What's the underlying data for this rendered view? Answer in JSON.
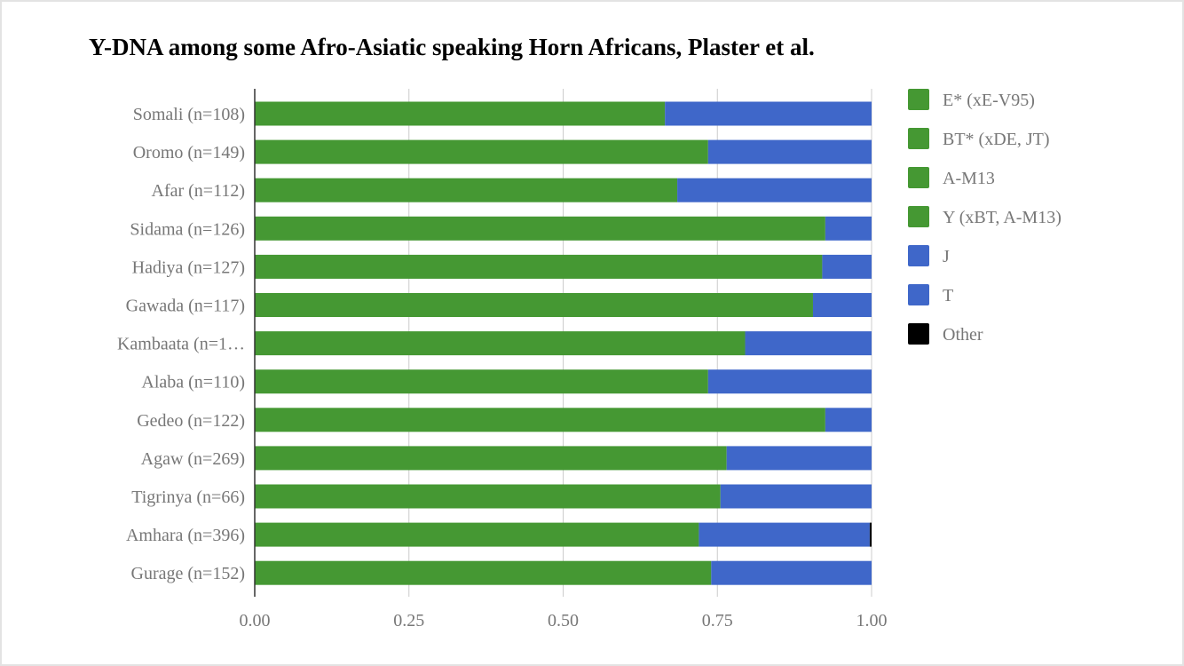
{
  "chart_data": {
    "type": "bar",
    "orientation": "horizontal",
    "stacked": true,
    "title": "Y-DNA among some Afro-Asiatic speaking Horn Africans, Plaster et al.",
    "xlabel": "",
    "ylabel": "",
    "xlim": [
      0,
      1
    ],
    "x_ticks": [
      "0.00",
      "0.25",
      "0.50",
      "0.75",
      "1.00"
    ],
    "grid": true,
    "legend_position": "right",
    "categories": [
      "Somali (n=108)",
      "Oromo (n=149)",
      "Afar (n=112)",
      "Sidama (n=126)",
      "Hadiya (n=127)",
      "Gawada (n=117)",
      "Kambaata (n=1…",
      "Alaba (n=110)",
      "Gedeo (n=122)",
      "Agaw (n=269)",
      "Tigrinya (n=66)",
      "Amhara (n=396)",
      "Gurage (n=152)"
    ],
    "series": [
      {
        "name": "E* (xE-V95)",
        "color": "#459833",
        "values": [
          0.665,
          0.735,
          0.685,
          0.925,
          0.92,
          0.905,
          0.795,
          0.735,
          0.925,
          0.765,
          0.755,
          0.72,
          0.74
        ]
      },
      {
        "name": "BT* (xDE, JT)",
        "color": "#459833",
        "values": [
          0,
          0,
          0,
          0,
          0,
          0,
          0,
          0,
          0,
          0,
          0,
          0,
          0
        ]
      },
      {
        "name": "A-M13",
        "color": "#459833",
        "values": [
          0,
          0,
          0,
          0,
          0,
          0,
          0,
          0,
          0,
          0,
          0,
          0,
          0
        ]
      },
      {
        "name": "Y (xBT, A-M13)",
        "color": "#459833",
        "values": [
          0,
          0,
          0,
          0,
          0,
          0,
          0,
          0,
          0,
          0,
          0,
          0,
          0
        ]
      },
      {
        "name": "J",
        "color": "#3f67c9",
        "values": [
          0.335,
          0.265,
          0.315,
          0.075,
          0.08,
          0.095,
          0.205,
          0.265,
          0.075,
          0.235,
          0.245,
          0.277,
          0.26
        ]
      },
      {
        "name": "T",
        "color": "#3f67c9",
        "values": [
          0,
          0,
          0,
          0,
          0,
          0,
          0,
          0,
          0,
          0,
          0,
          0,
          0
        ]
      },
      {
        "name": "Other",
        "color": "#000000",
        "values": [
          0,
          0,
          0,
          0,
          0,
          0,
          0,
          0,
          0,
          0,
          0,
          0.003,
          0
        ]
      }
    ]
  }
}
